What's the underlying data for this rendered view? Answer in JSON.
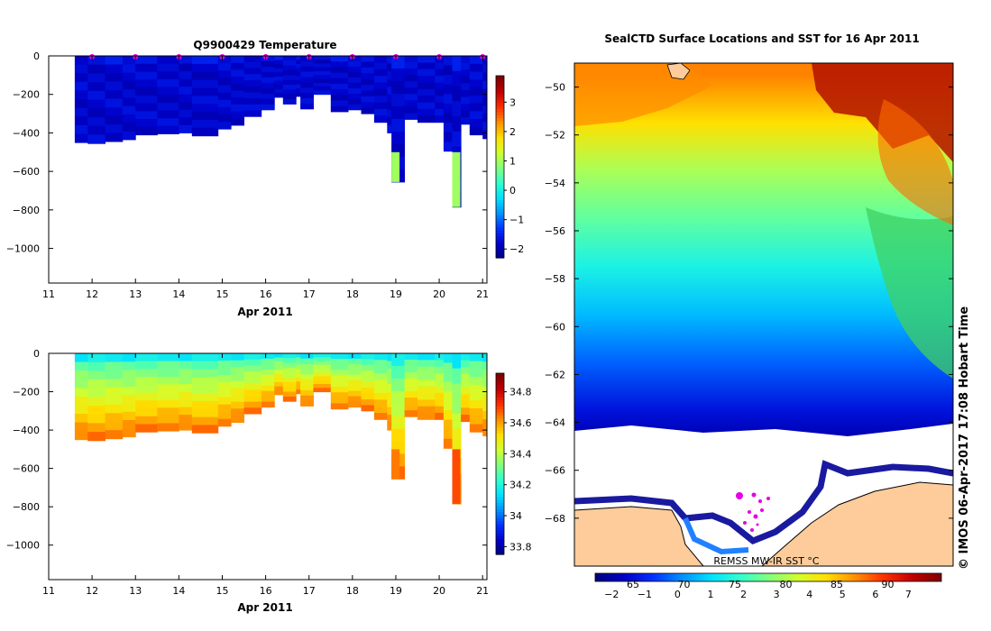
{
  "colors": {
    "jet": [
      "#00007f",
      "#0000c8",
      "#0030ff",
      "#0090ff",
      "#00e0ff",
      "#30ffd0",
      "#80ff80",
      "#d0ff30",
      "#ffe000",
      "#ff9000",
      "#ff3000",
      "#c00000",
      "#800000"
    ],
    "land": "#fdcc9a",
    "marker": "#e600e6"
  },
  "chart_data": [
    {
      "type": "heatmap",
      "title": "Q9900429  Temperature",
      "xlabel": "Apr 2011",
      "x_ticks": [
        "11",
        "12",
        "13",
        "14",
        "15",
        "16",
        "17",
        "18",
        "19",
        "20",
        "21"
      ],
      "xlim": [
        11,
        21.1
      ],
      "y_ticks": [
        "0",
        "−200",
        "−400",
        "−600",
        "−800",
        "−1000"
      ],
      "y_tick_values": [
        0,
        -200,
        -400,
        -600,
        -800,
        -1000
      ],
      "ylim": [
        -1180,
        0
      ],
      "colorbar": {
        "ticks": [
          "3",
          "2",
          "1",
          "0",
          "−1",
          "−2"
        ],
        "values": [
          3,
          2,
          1,
          0,
          -1,
          -2
        ],
        "range": [
          -2.3,
          3.9
        ]
      },
      "profiles": [
        {
          "day": 11.6,
          "depth": 450
        },
        {
          "day": 11.9,
          "depth": 455
        },
        {
          "day": 12.3,
          "depth": 445
        },
        {
          "day": 12.7,
          "depth": 435
        },
        {
          "day": 13.0,
          "depth": 410
        },
        {
          "day": 13.5,
          "depth": 405
        },
        {
          "day": 14.0,
          "depth": 400
        },
        {
          "day": 14.3,
          "depth": 415
        },
        {
          "day": 14.9,
          "depth": 380
        },
        {
          "day": 15.2,
          "depth": 360
        },
        {
          "day": 15.5,
          "depth": 315
        },
        {
          "day": 15.9,
          "depth": 280
        },
        {
          "day": 16.2,
          "depth": 215
        },
        {
          "day": 16.4,
          "depth": 250
        },
        {
          "day": 16.7,
          "depth": 210
        },
        {
          "day": 16.8,
          "depth": 275
        },
        {
          "day": 17.1,
          "depth": 200
        },
        {
          "day": 17.5,
          "depth": 290
        },
        {
          "day": 17.9,
          "depth": 280
        },
        {
          "day": 18.2,
          "depth": 300
        },
        {
          "day": 18.5,
          "depth": 345
        },
        {
          "day": 18.8,
          "depth": 400
        },
        {
          "day": 18.9,
          "depth": 655
        },
        {
          "day": 19.2,
          "depth": 330
        },
        {
          "day": 19.5,
          "depth": 345
        },
        {
          "day": 19.9,
          "depth": 345
        },
        {
          "day": 20.1,
          "depth": 495
        },
        {
          "day": 20.3,
          "depth": 785
        },
        {
          "day": 20.5,
          "depth": 355
        },
        {
          "day": 20.7,
          "depth": 410
        },
        {
          "day": 21.0,
          "depth": 430
        }
      ],
      "deep_anomalies": [
        {
          "day": 18.9,
          "from": 500,
          "to": 655,
          "value": 1.0
        },
        {
          "day": 20.3,
          "from": 500,
          "to": 785,
          "value": 1.0
        }
      ],
      "surface_markers_days": [
        12,
        13,
        14,
        15,
        16,
        17,
        18,
        19,
        20,
        21
      ]
    },
    {
      "type": "heatmap",
      "title": "",
      "xlabel": "Apr 2011",
      "x_ticks": [
        "11",
        "12",
        "13",
        "14",
        "15",
        "16",
        "17",
        "18",
        "19",
        "20",
        "21"
      ],
      "xlim": [
        11,
        21.1
      ],
      "y_ticks": [
        "0",
        "−200",
        "−400",
        "−600",
        "−800",
        "−1000"
      ],
      "y_tick_values": [
        0,
        -200,
        -400,
        -600,
        -800,
        -1000
      ],
      "ylim": [
        -1180,
        0
      ],
      "colorbar": {
        "ticks": [
          "34.8",
          "34.6",
          "34.4",
          "34.2",
          "34",
          "33.8"
        ],
        "values": [
          34.8,
          34.6,
          34.4,
          34.2,
          34.0,
          33.8
        ],
        "range": [
          33.75,
          34.92
        ]
      },
      "surface_value": 34.2,
      "deep_value": 34.6,
      "deep_anomaly_values": [
        34.65,
        34.7
      ]
    },
    {
      "type": "heatmap",
      "title": "SealCTD Surface Locations and SST for 16 Apr 2011",
      "y_ticks": [
        "−50",
        "−52",
        "−54",
        "−56",
        "−58",
        "−60",
        "−62",
        "−64",
        "−66",
        "−68"
      ],
      "y_tick_values": [
        -50,
        -52,
        -54,
        -56,
        -58,
        -60,
        -62,
        -64,
        -66,
        -68
      ],
      "ylim": [
        -70,
        -49
      ],
      "colorbar_top_ticks": [
        "65",
        "70",
        "75",
        "80",
        "85",
        "90"
      ],
      "colorbar_bottom_ticks": [
        "−2",
        "−1",
        "0",
        "1",
        "2",
        "3",
        "4",
        "5",
        "6",
        "7"
      ],
      "colorbar_range": [
        -2.5,
        8
      ],
      "sst_bands_by_latitude": [
        {
          "lat": -49.5,
          "value": 5.5
        },
        {
          "lat": -51.5,
          "value": 4.5
        },
        {
          "lat": -53.5,
          "value": 3.2
        },
        {
          "lat": -55.5,
          "value": 2.4
        },
        {
          "lat": -57.5,
          "value": 1.5
        },
        {
          "lat": -59.5,
          "value": 0.6
        },
        {
          "lat": -61.5,
          "value": -0.3
        },
        {
          "lat": -63.5,
          "value": -1.3
        }
      ],
      "annotation": "REMSS MW-IR SST °C",
      "credit": "© IMOS 06-Apr-2017 17:08 Hobart Time"
    }
  ]
}
